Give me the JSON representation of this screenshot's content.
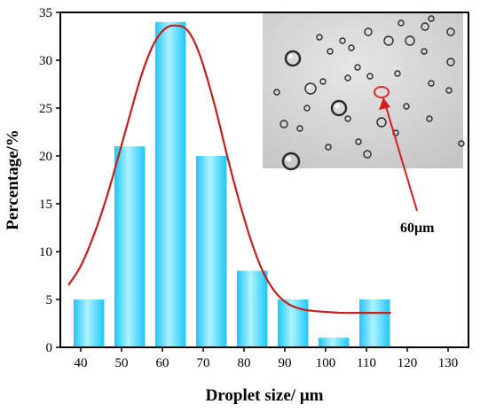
{
  "chart_data": {
    "type": "bar",
    "xlabel": "Droplet size/ μm",
    "ylabel": "Percentage/%",
    "xlim": [
      35,
      135
    ],
    "ylim": [
      0,
      35
    ],
    "x_ticks": [
      40,
      50,
      60,
      70,
      80,
      90,
      100,
      110,
      120,
      130
    ],
    "y_ticks": [
      0,
      5,
      10,
      15,
      20,
      25,
      30,
      35
    ],
    "bar_width": 7.5,
    "bars": [
      {
        "x": 42,
        "value": 5
      },
      {
        "x": 52,
        "value": 21
      },
      {
        "x": 62,
        "value": 34
      },
      {
        "x": 72,
        "value": 20
      },
      {
        "x": 82,
        "value": 8
      },
      {
        "x": 92,
        "value": 5
      },
      {
        "x": 102,
        "value": 1
      },
      {
        "x": 112,
        "value": 5
      }
    ],
    "fit_curve": {
      "x": [
        37,
        40,
        43,
        46,
        49,
        52,
        55,
        58,
        61,
        64,
        66,
        68,
        70,
        73,
        76,
        79,
        82,
        85,
        88,
        91,
        94,
        97,
        100,
        104,
        108,
        112,
        116
      ],
      "y": [
        6.5,
        8.5,
        11.5,
        15.2,
        19.6,
        24.2,
        28.6,
        31.8,
        33.4,
        33.6,
        33.2,
        31.8,
        29.5,
        25.0,
        19.8,
        15.0,
        10.8,
        7.6,
        5.6,
        4.5,
        4.0,
        3.8,
        3.7,
        3.6,
        3.6,
        3.6,
        3.6
      ]
    },
    "grid": false,
    "legend": "none",
    "colors": {
      "bar_fill": "#39d4ff",
      "bar_highlight": "#a9f0ff",
      "curve": "#c41e1e",
      "curve_peak": "#2f7d2f",
      "arrow": "#d11f1f"
    },
    "inset": {
      "annotation": "60μm",
      "highlight_color": "#e02a2a",
      "background": "#d7d7d7"
    }
  }
}
